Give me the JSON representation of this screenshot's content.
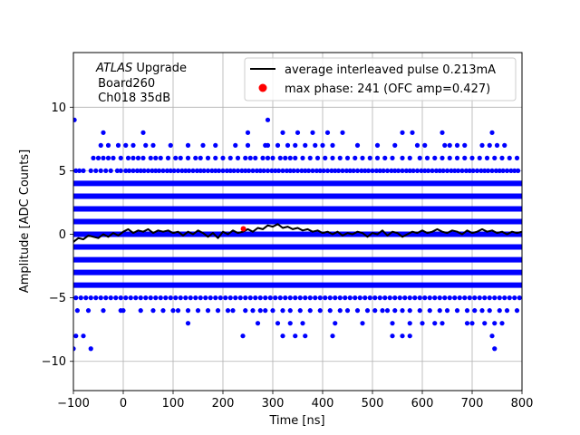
{
  "chart_data": {
    "type": "scatter",
    "xlabel": "Time [ns]",
    "ylabel": "Amplitude [ADC Counts]",
    "xlim": [
      -100,
      800
    ],
    "ylim": [
      -12.3,
      14.3
    ],
    "xticks": [
      -100,
      0,
      100,
      200,
      300,
      400,
      500,
      600,
      700,
      800
    ],
    "yticks": [
      -10,
      -5,
      0,
      5,
      10
    ],
    "grid": true,
    "legend_position": "top-right",
    "annotation": {
      "experiment": "ATLAS",
      "experiment_suffix": " Upgrade",
      "line2": " Board260",
      "line3": " Ch018 35dB"
    },
    "series": [
      {
        "name": "average interleaved pulse 0.213mA",
        "kind": "line",
        "color": "#000000",
        "x": [
          -100,
          -90,
          -80,
          -70,
          -60,
          -50,
          -40,
          -30,
          -20,
          -10,
          0,
          10,
          20,
          30,
          40,
          50,
          60,
          70,
          80,
          90,
          100,
          110,
          120,
          130,
          140,
          150,
          160,
          170,
          180,
          190,
          200,
          210,
          220,
          230,
          240,
          250,
          260,
          270,
          280,
          290,
          300,
          310,
          320,
          330,
          340,
          350,
          360,
          370,
          380,
          390,
          400,
          410,
          420,
          430,
          440,
          450,
          460,
          470,
          480,
          490,
          500,
          510,
          520,
          530,
          540,
          550,
          560,
          570,
          580,
          590,
          600,
          610,
          620,
          630,
          640,
          650,
          660,
          670,
          680,
          690,
          700,
          710,
          720,
          730,
          740,
          750,
          760,
          770,
          780,
          790,
          800
        ],
        "y": [
          -0.6,
          -0.3,
          -0.4,
          -0.1,
          -0.2,
          -0.3,
          0.0,
          -0.2,
          0.1,
          -0.1,
          0.2,
          0.4,
          0.1,
          0.3,
          0.2,
          0.4,
          0.1,
          0.3,
          0.2,
          0.3,
          0.1,
          0.2,
          -0.1,
          0.2,
          0.0,
          0.3,
          0.1,
          -0.2,
          0.1,
          -0.3,
          0.2,
          0.0,
          0.3,
          0.1,
          0.2,
          0.4,
          0.2,
          0.5,
          0.4,
          0.7,
          0.6,
          0.8,
          0.5,
          0.6,
          0.4,
          0.5,
          0.3,
          0.4,
          0.2,
          0.3,
          0.1,
          0.2,
          0.0,
          0.2,
          -0.1,
          0.1,
          0.0,
          0.2,
          0.1,
          -0.2,
          0.1,
          0.0,
          0.3,
          -0.1,
          0.2,
          0.1,
          -0.2,
          0.0,
          0.2,
          0.1,
          0.3,
          0.1,
          0.2,
          0.4,
          0.2,
          0.1,
          0.3,
          0.2,
          0.0,
          0.3,
          0.1,
          0.2,
          0.4,
          0.2,
          0.3,
          0.1,
          0.2,
          0.0,
          0.2,
          0.1,
          0.2
        ]
      },
      {
        "name": "max phase: 241 (OFC amp=0.427)",
        "kind": "marker",
        "color": "#ff0000",
        "x": [
          241
        ],
        "y": [
          0.427
        ]
      },
      {
        "kind": "scatter",
        "color": "#0000ff",
        "bands": [
          {
            "y": 4,
            "x_from": -100,
            "x_to": 800
          },
          {
            "y": 3,
            "x_from": -100,
            "x_to": 800
          },
          {
            "y": 2,
            "x_from": -100,
            "x_to": 800
          },
          {
            "y": 1,
            "x_from": -100,
            "x_to": 800
          },
          {
            "y": 0,
            "x_from": -100,
            "x_to": 800
          },
          {
            "y": -1,
            "x_from": -100,
            "x_to": 800
          },
          {
            "y": -2,
            "x_from": -100,
            "x_to": 800
          },
          {
            "y": -3,
            "x_from": -100,
            "x_to": 800
          },
          {
            "y": -4,
            "x_from": -100,
            "x_to": 800
          }
        ],
        "points": [
          {
            "y": 5,
            "x": [
              -95,
              -88,
              -80,
              -65,
              -55,
              -45,
              -35,
              -25,
              -12,
              -5,
              5,
              12,
              20,
              28,
              35,
              42,
              50,
              58,
              65,
              72,
              80,
              88,
              95,
              102,
              110,
              118,
              125,
              132,
              140,
              148,
              155,
              162,
              170,
              178,
              185,
              192,
              200,
              208,
              215,
              222,
              230,
              238,
              245,
              252,
              260,
              268,
              275,
              282,
              290,
              298,
              305,
              312,
              320,
              328,
              335,
              342,
              350,
              358,
              365,
              372,
              380,
              388,
              395,
              402,
              410,
              418,
              425,
              432,
              440,
              448,
              455,
              462,
              470,
              478,
              485,
              492,
              500,
              508,
              515,
              522,
              530,
              538,
              545,
              552,
              560,
              568,
              575,
              582,
              590,
              598,
              605,
              612,
              620,
              628,
              635,
              642,
              650,
              658,
              665,
              672,
              680,
              688,
              695,
              702,
              710,
              718,
              725,
              732,
              740,
              748,
              755,
              762,
              770,
              778,
              785,
              792
            ]
          },
          {
            "y": 6,
            "x": [
              -60,
              -50,
              -40,
              -30,
              -20,
              -5,
              10,
              20,
              30,
              40,
              55,
              65,
              75,
              90,
              105,
              115,
              130,
              145,
              155,
              170,
              185,
              200,
              215,
              230,
              245,
              255,
              265,
              280,
              290,
              300,
              315,
              325,
              335,
              345,
              360,
              375,
              390,
              405,
              420,
              435,
              450,
              465,
              480,
              495,
              510,
              525,
              540,
              560,
              575,
              595,
              610,
              625,
              640,
              655,
              670,
              685,
              700,
              715,
              730,
              745,
              760,
              775,
              790
            ]
          },
          {
            "y": 7,
            "x": [
              -45,
              -30,
              -10,
              5,
              20,
              45,
              60,
              95,
              130,
              160,
              185,
              225,
              250,
              285,
              290,
              310,
              330,
              345,
              365,
              385,
              400,
              420,
              470,
              510,
              545,
              590,
              605,
              645,
              655,
              670,
              685,
              720,
              735,
              750,
              765
            ]
          },
          {
            "y": 8,
            "x": [
              -40,
              40,
              250,
              320,
              350,
              380,
              410,
              440,
              560,
              580,
              640,
              740
            ]
          },
          {
            "y": 9,
            "x": [
              -98,
              290
            ]
          },
          {
            "y": -5,
            "x": [
              -95,
              -85,
              -75,
              -65,
              -55,
              -45,
              -35,
              -25,
              -15,
              -5,
              5,
              15,
              25,
              35,
              45,
              55,
              65,
              75,
              85,
              95,
              105,
              115,
              125,
              135,
              145,
              155,
              165,
              175,
              185,
              195,
              205,
              215,
              225,
              235,
              245,
              255,
              265,
              275,
              285,
              295,
              305,
              315,
              325,
              335,
              345,
              355,
              365,
              375,
              385,
              395,
              405,
              415,
              425,
              435,
              445,
              455,
              465,
              475,
              485,
              495,
              505,
              515,
              525,
              535,
              545,
              555,
              565,
              575,
              585,
              595,
              605,
              615,
              625,
              635,
              645,
              655,
              665,
              675,
              685,
              695,
              705,
              715,
              725,
              735,
              745,
              755,
              765,
              775,
              785,
              795
            ]
          },
          {
            "y": -6,
            "x": [
              -92,
              -70,
              -40,
              -5,
              0,
              35,
              60,
              80,
              100,
              110,
              130,
              150,
              170,
              190,
              210,
              220,
              245,
              260,
              275,
              285,
              300,
              320,
              335,
              355,
              375,
              395,
              415,
              435,
              450,
              470,
              490,
              505,
              520,
              530,
              545,
              560,
              575,
              595,
              615,
              635,
              650,
              670,
              690,
              705,
              720,
              735,
              755,
              770,
              790
            ]
          },
          {
            "y": -7,
            "x": [
              130,
              270,
              310,
              335,
              360,
              425,
              480,
              540,
              575,
              600,
              625,
              640,
              690,
              700,
              725,
              745,
              760
            ]
          },
          {
            "y": -8,
            "x": [
              -95,
              -80,
              240,
              320,
              345,
              365,
              420,
              540,
              560,
              575,
              740
            ]
          },
          {
            "y": -9,
            "x": [
              -100,
              -65,
              745
            ]
          }
        ]
      }
    ]
  }
}
